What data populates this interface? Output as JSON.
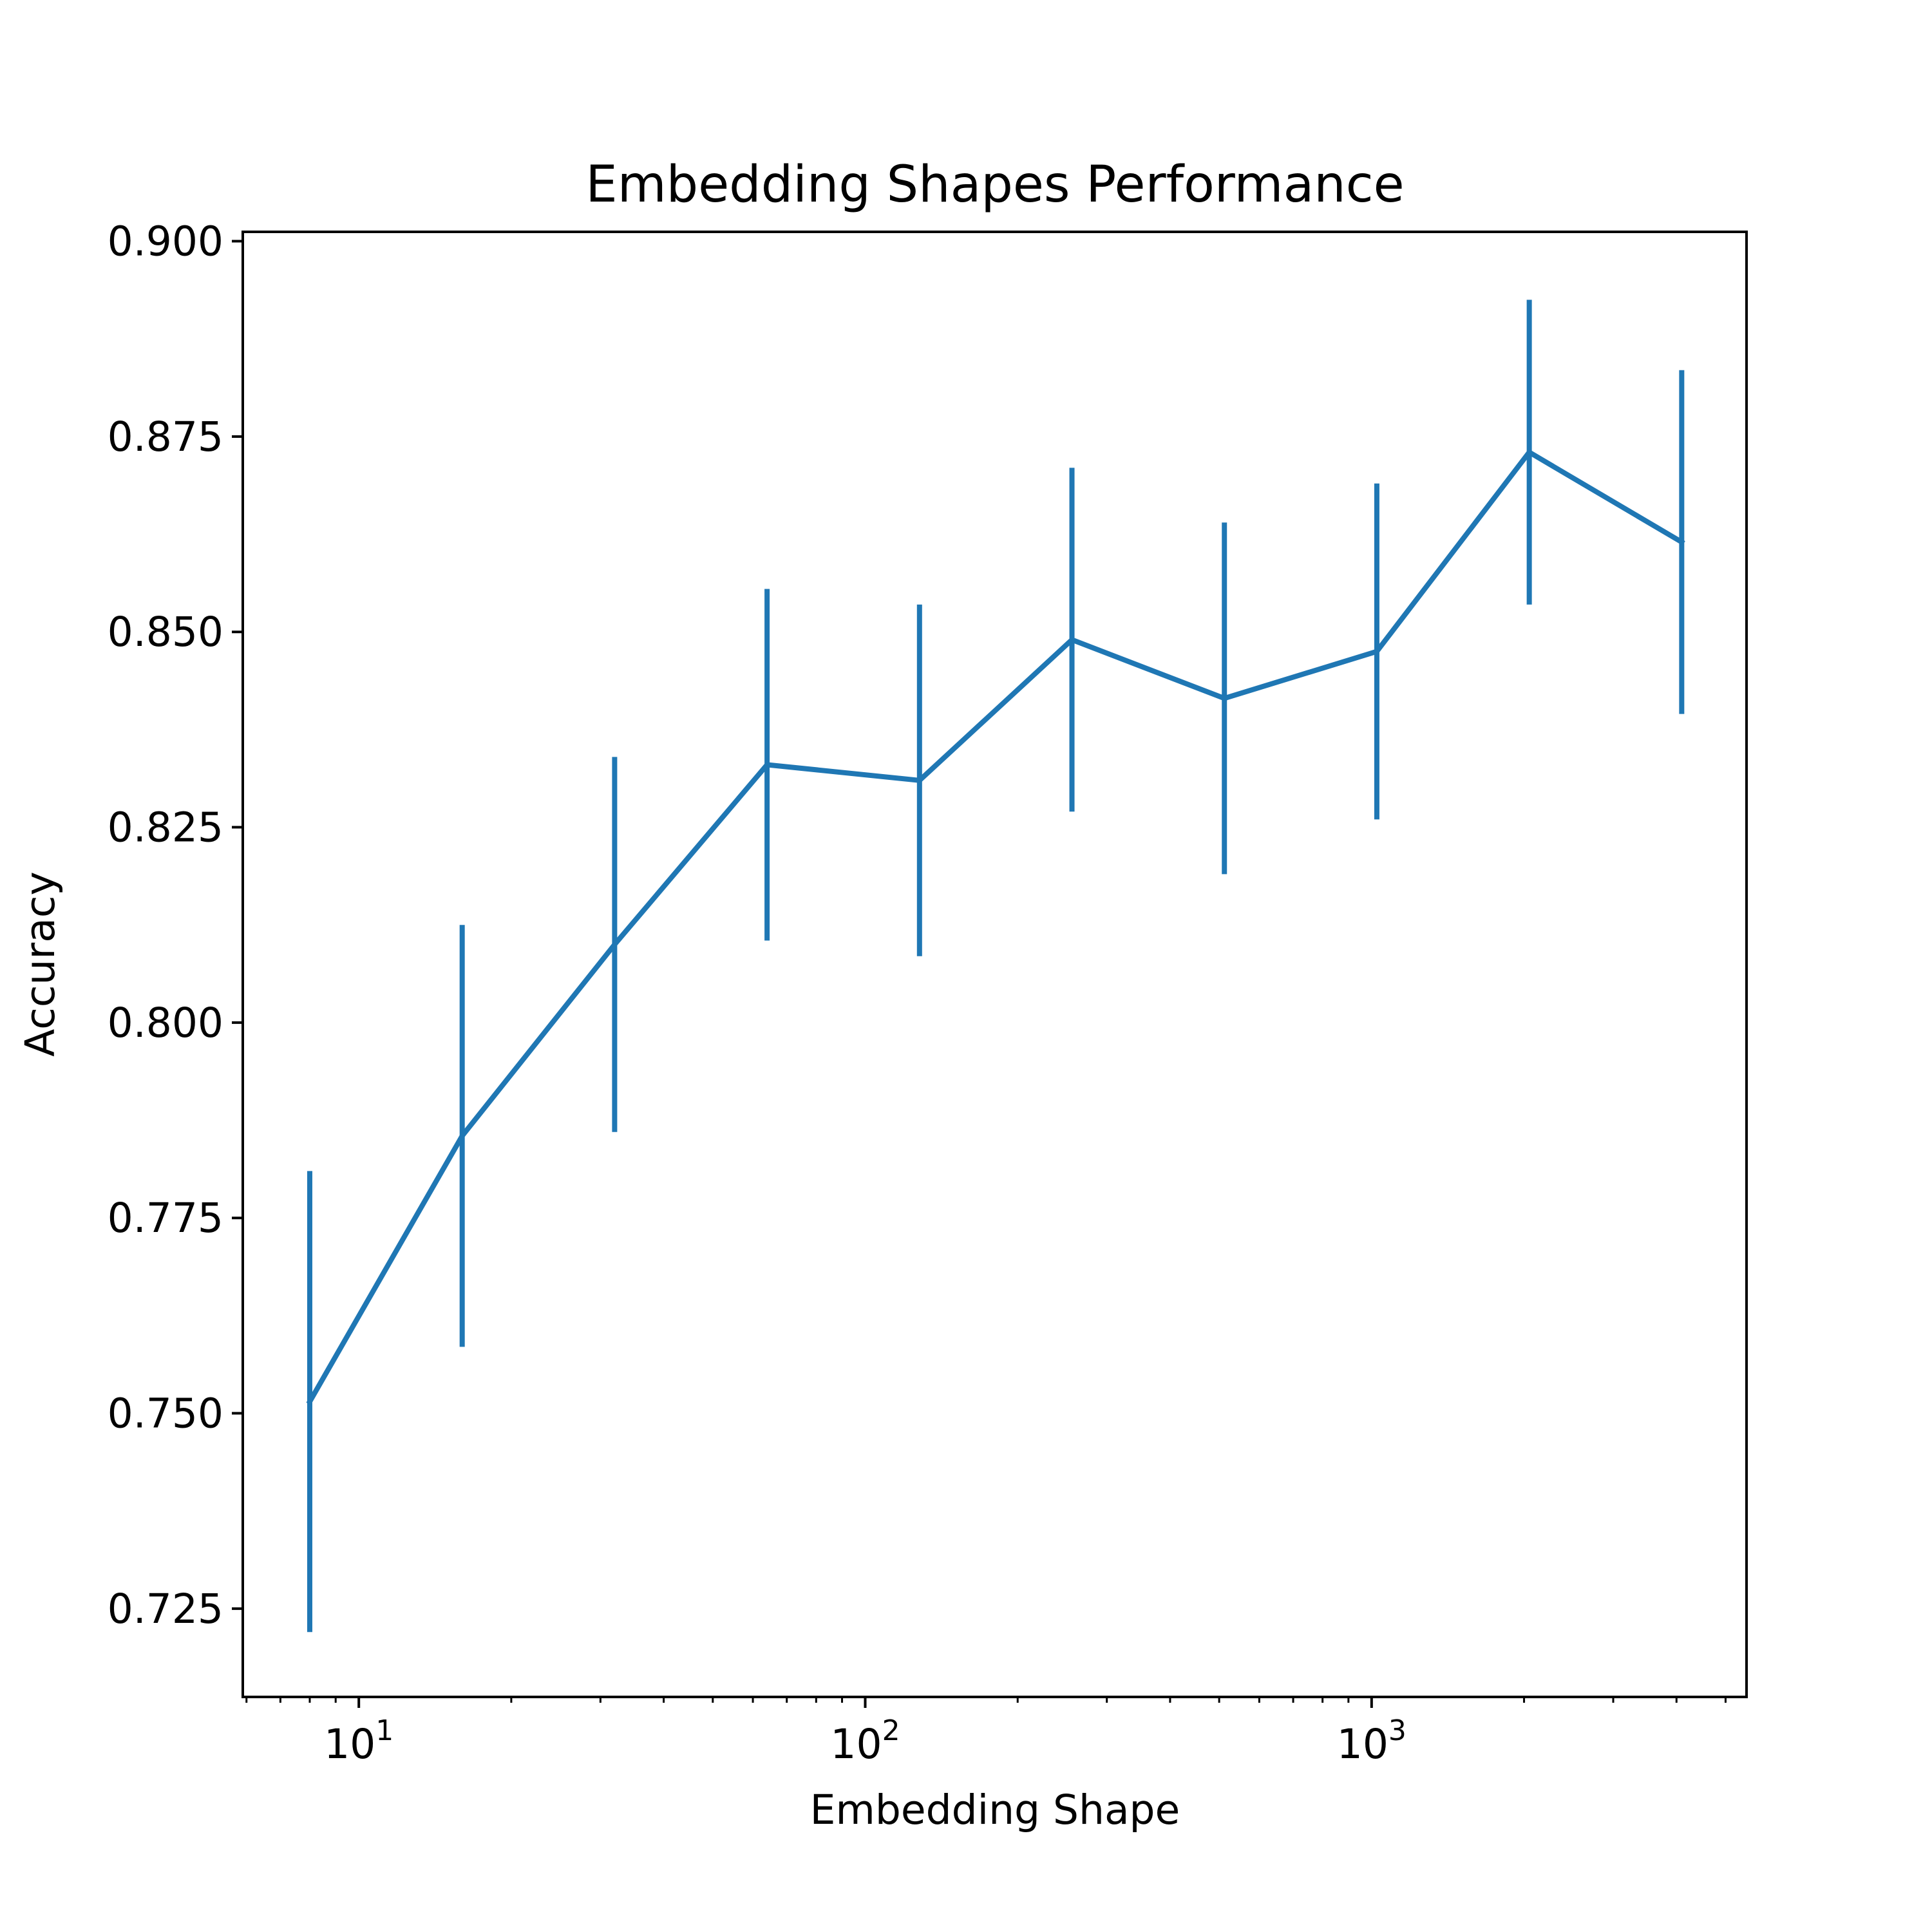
{
  "chart_data": {
    "type": "line",
    "title": "Embedding Shapes Performance",
    "xlabel": "Embedding Shape",
    "ylabel": "Accuracy",
    "x_scale": "log",
    "x_scale_base": 10,
    "xlim": [
      5.9,
      5500
    ],
    "ylim": [
      0.7137,
      0.9012
    ],
    "grid": false,
    "legend": "none",
    "line_color": "#1f77b4",
    "x_major_ticks": [
      {
        "value": 10,
        "base": "10",
        "exp": "1"
      },
      {
        "value": 100,
        "base": "10",
        "exp": "2"
      },
      {
        "value": 1000,
        "base": "10",
        "exp": "3"
      }
    ],
    "x_minor_ticks": [
      6,
      7,
      8,
      9,
      20,
      30,
      40,
      50,
      60,
      70,
      80,
      90,
      200,
      300,
      400,
      500,
      600,
      700,
      800,
      900,
      2000,
      3000,
      4000,
      5000
    ],
    "y_ticks": [
      {
        "value": 0.725,
        "label": "0.725"
      },
      {
        "value": 0.75,
        "label": "0.750"
      },
      {
        "value": 0.775,
        "label": "0.775"
      },
      {
        "value": 0.8,
        "label": "0.800"
      },
      {
        "value": 0.825,
        "label": "0.825"
      },
      {
        "value": 0.85,
        "label": "0.850"
      },
      {
        "value": 0.875,
        "label": "0.875"
      },
      {
        "value": 0.9,
        "label": "0.900"
      }
    ],
    "series": [
      {
        "x": [
          8,
          16,
          32,
          64,
          128,
          256,
          512,
          1024,
          2048,
          4096
        ],
        "y": [
          0.7515,
          0.7855,
          0.81,
          0.833,
          0.831,
          0.849,
          0.8415,
          0.8475,
          0.873,
          0.8615
        ],
        "yerr": [
          0.0295,
          0.027,
          0.024,
          0.0225,
          0.0225,
          0.022,
          0.0225,
          0.0215,
          0.0195,
          0.022
        ]
      }
    ]
  }
}
